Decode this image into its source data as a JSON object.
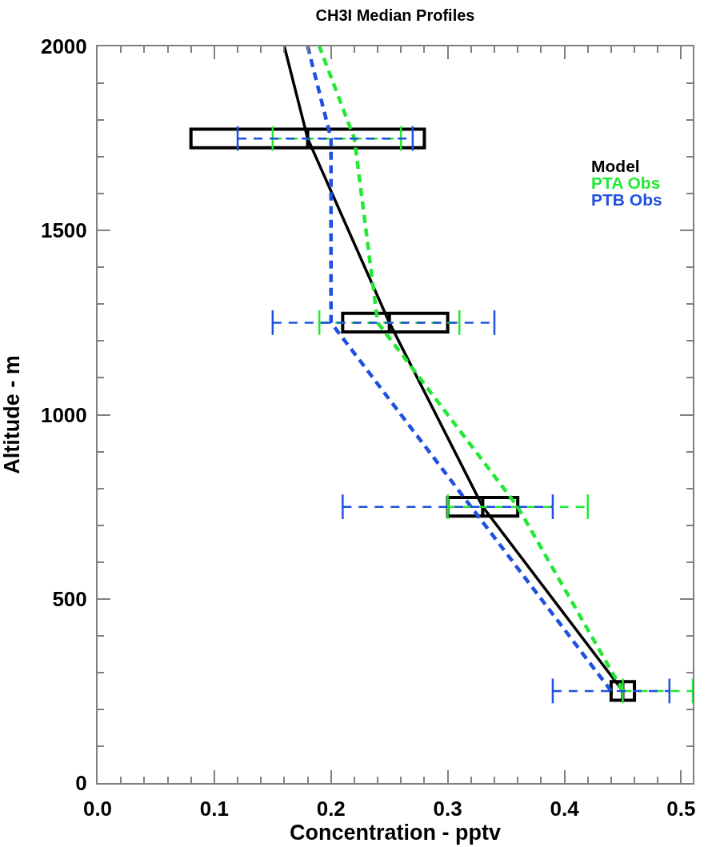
{
  "chart_data": {
    "type": "line",
    "title": "CH3I Median Profiles",
    "xlabel": "Concentration - pptv",
    "ylabel": "Altitude - m",
    "xlim": [
      0,
      0.51
    ],
    "ylim": [
      0,
      2000
    ],
    "orientation": "horizontal",
    "xticks": [
      {
        "value": 0,
        "label": "0.0"
      },
      {
        "value": 0.02,
        "label": null
      },
      {
        "value": 0.04,
        "label": null
      },
      {
        "value": 0.06,
        "label": null
      },
      {
        "value": 0.08,
        "label": null
      },
      0.1,
      {
        "value": 0.12,
        "label": null
      },
      {
        "value": 0.14,
        "label": null
      },
      {
        "value": 0.16,
        "label": null
      },
      {
        "value": 0.18,
        "label": null
      },
      0.2,
      {
        "value": 0.22,
        "label": null
      },
      {
        "value": 0.24,
        "label": null
      },
      {
        "value": 0.26,
        "label": null
      },
      {
        "value": 0.28,
        "label": null
      },
      0.3,
      {
        "value": 0.32,
        "label": null
      },
      {
        "value": 0.34,
        "label": null
      },
      {
        "value": 0.36,
        "label": null
      },
      {
        "value": 0.38,
        "label": null
      },
      0.4,
      {
        "value": 0.42,
        "label": null
      },
      {
        "value": 0.44,
        "label": null
      },
      {
        "value": 0.46,
        "label": null
      },
      {
        "value": 0.48,
        "label": null
      },
      0.5
    ],
    "yticks": [
      0,
      {
        "value": 100,
        "label": null
      },
      {
        "value": 200,
        "label": null
      },
      {
        "value": 300,
        "label": null
      },
      {
        "value": 400,
        "label": null
      },
      500,
      {
        "value": 600,
        "label": null
      },
      {
        "value": 700,
        "label": null
      },
      {
        "value": 800,
        "label": null
      },
      {
        "value": 900,
        "label": null
      },
      1000,
      {
        "value": 1100,
        "label": null
      },
      {
        "value": 1200,
        "label": null
      },
      {
        "value": 1300,
        "label": null
      },
      {
        "value": 1400,
        "label": null
      },
      1500,
      {
        "value": 1600,
        "label": null
      },
      {
        "value": 1700,
        "label": null
      },
      {
        "value": 1800,
        "label": null
      },
      {
        "value": 1900,
        "label": null
      },
      2000
    ],
    "legend": "top right",
    "series": [
      {
        "name": "Model",
        "color": "#000000",
        "line_style": "solid",
        "x": [
          250,
          750,
          1250,
          1750,
          2000
        ],
        "values": [
          0.45,
          0.33,
          0.25,
          0.18,
          0.16
        ]
      },
      {
        "name": "PTA Obs",
        "color": "#22e834",
        "line_style": "dashed",
        "x": [
          250,
          750,
          1250,
          1750,
          2000
        ],
        "values": [
          0.45,
          0.36,
          0.24,
          0.22,
          0.19
        ],
        "errors": [
          [
            0.45,
            0.51
          ],
          [
            0.3,
            0.42
          ],
          [
            0.19,
            0.31
          ],
          [
            0.15,
            0.26
          ],
          null
        ]
      },
      {
        "name": "PTB Obs",
        "color": "#1f50e0",
        "line_style": "dashed",
        "x": [
          250,
          750,
          1250,
          1750,
          2000
        ],
        "values": [
          0.44,
          0.32,
          0.2,
          0.2,
          0.18
        ],
        "errors": [
          [
            0.39,
            0.49
          ],
          [
            0.21,
            0.39
          ],
          [
            0.15,
            0.34
          ],
          [
            0.12,
            0.27
          ],
          null
        ]
      },
      {
        "type": "box",
        "color": "#000000",
        "x": [
          250,
          750,
          1250,
          1750
        ],
        "boxes": [
          {
            "low": null,
            "q1": 0.44,
            "median": 0.45,
            "q3": 0.46,
            "high": null
          },
          {
            "low": null,
            "q1": 0.3,
            "median": 0.33,
            "q3": 0.36,
            "high": null
          },
          {
            "low": null,
            "q1": 0.21,
            "median": 0.25,
            "q3": 0.3,
            "high": null
          },
          {
            "low": null,
            "q1": 0.08,
            "median": 0.18,
            "q3": 0.28,
            "high": null
          }
        ]
      }
    ]
  }
}
